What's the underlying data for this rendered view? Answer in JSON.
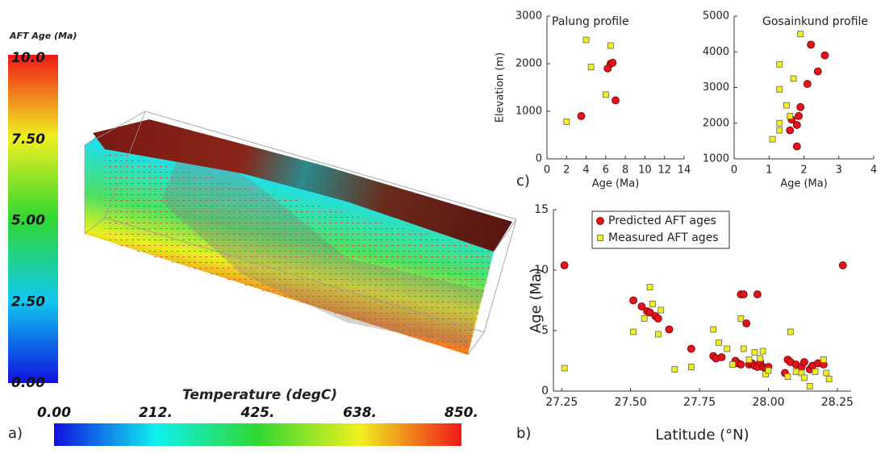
{
  "figure": {
    "panel_labels": [
      "a)",
      "b)",
      "c)"
    ],
    "age_colorbar": {
      "title": "AFT Age (Ma)",
      "lim": [
        0,
        10
      ],
      "ticks": [
        {
          "value": 10,
          "label": "10.0"
        },
        {
          "value": 7.5,
          "label": "7.50"
        },
        {
          "value": 5,
          "label": "5.00"
        },
        {
          "value": 2.5,
          "label": "2.50"
        },
        {
          "value": 0,
          "label": "0.00"
        }
      ]
    },
    "temperature_colorbar": {
      "title": "Temperature (degC)",
      "lim": [
        0,
        850
      ],
      "ticks": [
        {
          "value": 0,
          "label": "0.00"
        },
        {
          "value": 212,
          "label": "212."
        },
        {
          "value": 425,
          "label": "425."
        },
        {
          "value": 638,
          "label": "638."
        },
        {
          "value": 850,
          "label": "850."
        }
      ]
    }
  },
  "chart_data": [
    {
      "type": "scatter",
      "title": "Palung profile",
      "x_label": "Age (Ma)",
      "y_label": "Elevation (m)",
      "xlim": [
        0,
        14
      ],
      "xticks": [
        0,
        2,
        4,
        6,
        8,
        10,
        12,
        14
      ],
      "ylim": [
        0,
        3000
      ],
      "yticks": [
        0,
        1000,
        2000,
        3000
      ],
      "series": [
        {
          "color": "#e8101a",
          "marker": "circle",
          "x": [
            6.5,
            6.2,
            6.7,
            7.0,
            3.5
          ],
          "values": [
            2000,
            1900,
            2020,
            1230,
            900
          ]
        },
        {
          "color": "#f2ee1a",
          "marker": "square",
          "x": [
            4.0,
            6.5,
            4.5,
            6.0,
            2.0
          ],
          "values": [
            2500,
            2380,
            1930,
            1350,
            780
          ]
        }
      ]
    },
    {
      "type": "scatter",
      "title": "Gosainkund profile",
      "x_label": "Age (Ma)",
      "xlim": [
        0,
        4
      ],
      "xticks": [
        0,
        1,
        2,
        3,
        4
      ],
      "ylim": [
        1000,
        5000
      ],
      "yticks": [
        1000,
        2000,
        3000,
        4000,
        5000
      ],
      "series": [
        {
          "color": "#e8101a",
          "marker": "circle",
          "x": [
            2.2,
            2.6,
            2.4,
            2.1,
            1.9,
            1.85,
            1.8,
            1.6,
            1.65,
            1.8
          ],
          "values": [
            4200,
            3900,
            3450,
            3100,
            2450,
            2200,
            1950,
            1800,
            2100,
            1350
          ]
        },
        {
          "color": "#f2ee1a",
          "marker": "square",
          "x": [
            1.9,
            1.3,
            1.7,
            1.3,
            1.5,
            1.3,
            1.3,
            1.1,
            1.6
          ],
          "values": [
            4500,
            3650,
            3250,
            2950,
            2500,
            2000,
            1800,
            1550,
            2200
          ]
        }
      ]
    },
    {
      "type": "scatter",
      "x_label": "Latitude (°N)",
      "y_label": "Age (Ma)",
      "legend": "upper left",
      "xlim": [
        27.22,
        28.3
      ],
      "xticks": [
        27.25,
        {
          "value": 27.5,
          "label": "27.50"
        },
        27.75,
        {
          "value": 28,
          "label": "28.00"
        },
        28.25
      ],
      "ylim": [
        0,
        15
      ],
      "yticks": [
        0,
        5,
        10,
        15
      ],
      "series": [
        {
          "name": "Predicted AFT ages",
          "color": "#e8101a",
          "marker": "circle",
          "x": [
            27.26,
            27.51,
            27.54,
            27.56,
            27.57,
            27.59,
            27.6,
            27.64,
            27.72,
            27.8,
            27.81,
            27.83,
            27.9,
            27.91,
            27.96,
            27.88,
            27.89,
            27.9,
            27.92,
            27.93,
            27.94,
            27.95,
            27.96,
            27.97,
            27.98,
            27.99,
            28.0,
            28.06,
            28.07,
            28.08,
            28.1,
            28.12,
            28.13,
            28.15,
            28.16,
            28.18,
            28.2,
            28.27
          ],
          "values": [
            10.4,
            7.5,
            7.0,
            6.6,
            6.5,
            6.2,
            6.0,
            5.1,
            3.5,
            2.9,
            2.7,
            2.8,
            8.0,
            8.0,
            8.0,
            2.5,
            2.3,
            2.2,
            5.6,
            2.2,
            2.3,
            2.1,
            2.0,
            2.4,
            2.0,
            1.9,
            2.0,
            1.5,
            2.6,
            2.4,
            2.2,
            2.0,
            2.4,
            1.8,
            2.1,
            2.3,
            2.2,
            10.4
          ]
        },
        {
          "name": "Measured AFT ages",
          "color": "#f2ee1a",
          "marker": "square",
          "x": [
            27.26,
            27.51,
            27.55,
            27.57,
            27.58,
            27.6,
            27.61,
            27.66,
            27.72,
            27.8,
            27.82,
            27.85,
            27.87,
            27.9,
            27.91,
            27.93,
            27.95,
            27.97,
            27.98,
            27.99,
            28.0,
            28.07,
            28.08,
            28.1,
            28.12,
            28.13,
            28.15,
            28.17,
            28.2,
            28.21,
            28.22
          ],
          "values": [
            1.9,
            4.9,
            6.0,
            8.6,
            7.2,
            4.7,
            6.7,
            1.8,
            2.0,
            5.1,
            4.0,
            3.5,
            2.2,
            6.0,
            3.5,
            2.6,
            3.2,
            2.7,
            3.3,
            1.4,
            1.7,
            1.2,
            4.9,
            1.6,
            1.5,
            1.1,
            0.4,
            1.6,
            2.6,
            1.5,
            1.0
          ]
        }
      ]
    }
  ]
}
